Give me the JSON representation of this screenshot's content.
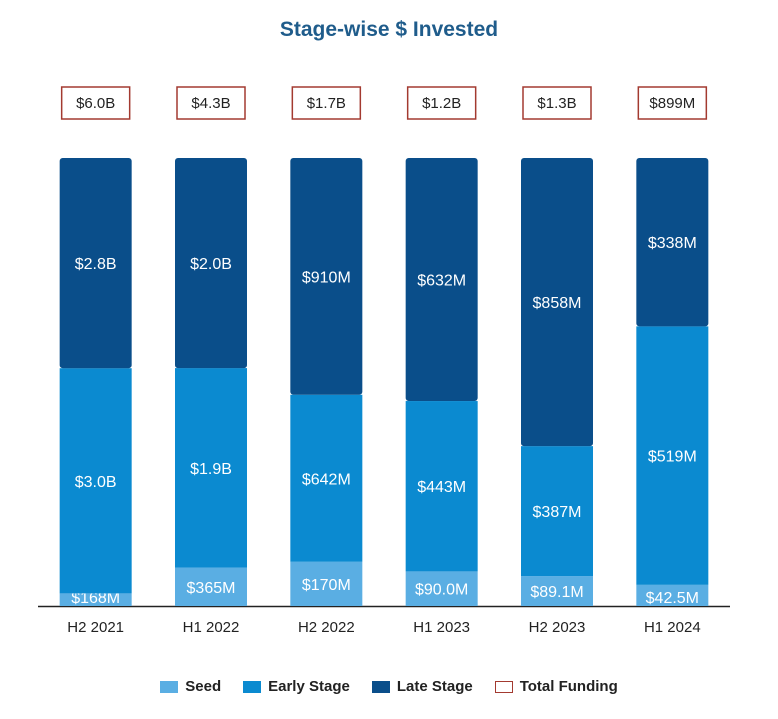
{
  "chart_data": {
    "type": "bar",
    "stacked": true,
    "title": "Stage-wise $ Invested",
    "categories": [
      "H2 2021",
      "H1 2022",
      "H2 2022",
      "H1 2023",
      "H2 2023",
      "H1 2024"
    ],
    "series": [
      {
        "name": "Seed",
        "color": "#5aaee3",
        "values": [
          168,
          365,
          170,
          90.0,
          89.1,
          42.5
        ],
        "labels": [
          "$168M",
          "$365M",
          "$170M",
          "$90.0M",
          "$89.1M",
          "$42.5M"
        ]
      },
      {
        "name": "Early Stage",
        "color": "#0b8ad0",
        "values": [
          3000,
          1900,
          642,
          443,
          387,
          519
        ],
        "labels": [
          "$3.0B",
          "$1.9B",
          "$642M",
          "$443M",
          "$387M",
          "$519M"
        ]
      },
      {
        "name": "Late Stage",
        "color": "#0a4e8a",
        "values": [
          2800,
          2000,
          910,
          632,
          858,
          338
        ],
        "labels": [
          "$2.8B",
          "$2.0B",
          "$910M",
          "$632M",
          "$858M",
          "$338M"
        ]
      }
    ],
    "totals": {
      "name": "Total Funding",
      "color": "#a33a30",
      "labels": [
        "$6.0B",
        "$4.3B",
        "$1.7B",
        "$1.2B",
        "$1.3B",
        "$899M"
      ]
    },
    "normalized": true,
    "units": "USD millions",
    "legend": "bottom-center",
    "grid": false
  }
}
